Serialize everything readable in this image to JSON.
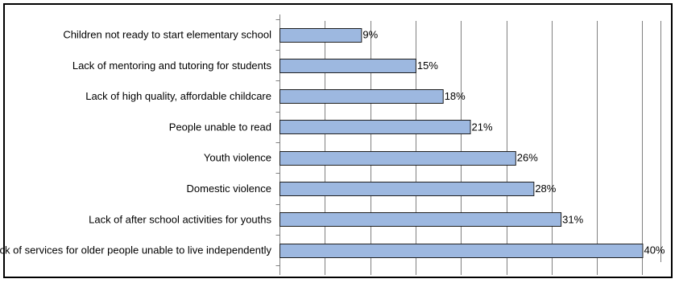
{
  "chart_data": {
    "type": "bar",
    "orientation": "horizontal",
    "categories": [
      "Children not ready to start elementary school",
      "Lack of mentoring and tutoring for students",
      "Lack of high quality, affordable childcare",
      "People unable to read",
      "Youth violence",
      "Domestic violence",
      "Lack of after school activities for youths",
      "Lack of services for older people unable to live independently"
    ],
    "values": [
      9,
      15,
      18,
      21,
      26,
      28,
      31,
      40
    ],
    "value_labels": [
      "9%",
      "15%",
      "18%",
      "21%",
      "26%",
      "28%",
      "31%",
      "40%"
    ],
    "unit": "%",
    "xlim": [
      0,
      42
    ],
    "title": "",
    "xlabel": "",
    "ylabel": "",
    "grid": "vertical",
    "legend": "none",
    "colors": {
      "bar_fill": "#9db8e0",
      "bar_stroke": "#1f1f1f",
      "grid": "#808080",
      "axis": "#808080"
    }
  }
}
